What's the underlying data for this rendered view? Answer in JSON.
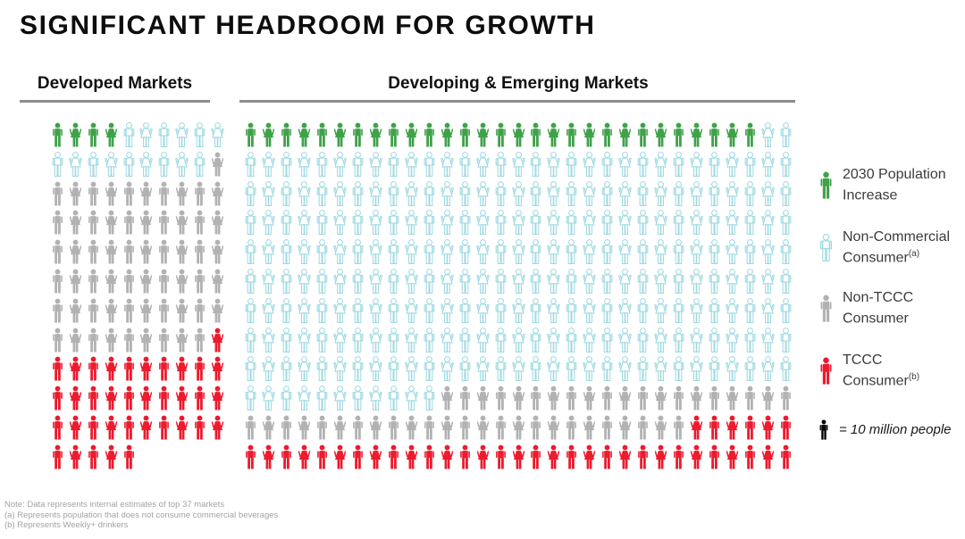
{
  "title": "SIGNIFICANT HEADROOM FOR GROWTH",
  "categories": {
    "increase": {
      "label": "2030 Population Increase",
      "color": "#3fa24a",
      "style": "solid"
    },
    "noncommercial": {
      "label": "Non-Commercial Consumer (a)",
      "color": "#9ed9e1",
      "style": "outline"
    },
    "nontccc": {
      "label": "Non-TCCC Consumer",
      "color": "#b2b2b4",
      "style": "solid"
    },
    "tccc": {
      "label": "TCCC Consumer (b)",
      "color": "#ec1b2e",
      "style": "solid"
    }
  },
  "panels": [
    {
      "label": "Developed Markets",
      "rows": [
        [
          [
            "increase",
            4
          ],
          [
            "noncommercial",
            6
          ]
        ],
        [
          [
            "noncommercial",
            9
          ],
          [
            "nontccc",
            1
          ]
        ],
        [
          [
            "nontccc",
            10
          ]
        ],
        [
          [
            "nontccc",
            10
          ]
        ],
        [
          [
            "nontccc",
            10
          ]
        ],
        [
          [
            "nontccc",
            10
          ]
        ],
        [
          [
            "nontccc",
            10
          ]
        ],
        [
          [
            "nontccc",
            9
          ],
          [
            "tccc",
            1
          ]
        ],
        [
          [
            "tccc",
            10
          ]
        ],
        [
          [
            "tccc",
            10
          ]
        ],
        [
          [
            "tccc",
            10
          ]
        ],
        [
          [
            "tccc",
            5
          ]
        ]
      ]
    },
    {
      "label": "Developing & Emerging Markets",
      "rows": [
        [
          [
            "increase",
            29
          ],
          [
            "noncommercial",
            2
          ]
        ],
        [
          [
            "noncommercial",
            31
          ]
        ],
        [
          [
            "noncommercial",
            31
          ]
        ],
        [
          [
            "noncommercial",
            31
          ]
        ],
        [
          [
            "noncommercial",
            31
          ]
        ],
        [
          [
            "noncommercial",
            31
          ]
        ],
        [
          [
            "noncommercial",
            31
          ]
        ],
        [
          [
            "noncommercial",
            31
          ]
        ],
        [
          [
            "noncommercial",
            31
          ]
        ],
        [
          [
            "noncommercial",
            11
          ],
          [
            "nontccc",
            20
          ]
        ],
        [
          [
            "nontccc",
            25
          ],
          [
            "tccc",
            6
          ]
        ],
        [
          [
            "tccc",
            31
          ]
        ]
      ]
    }
  ],
  "legend": {
    "items": [
      {
        "line1": "2030 Population",
        "line2": "Increase",
        "sup": "",
        "category": "increase"
      },
      {
        "line1": "Non-Commercial",
        "line2": "Consumer",
        "sup": "(a)",
        "category": "noncommercial"
      },
      {
        "line1": "Non-TCCC",
        "line2": "Consumer",
        "sup": "",
        "category": "nontccc"
      },
      {
        "line1": "TCCC",
        "line2": "Consumer",
        "sup": "(b)",
        "category": "tccc"
      }
    ],
    "unit": {
      "icon_color": "#000000",
      "label": "= 10 million people"
    }
  },
  "footnotes": [
    "Note: Data represents internal estimates of top 37 markets",
    "(a) Represents population that does not consume commercial beverages",
    "(b) Represents Weekly+ drinkers"
  ],
  "chart_data": {
    "type": "pictogram",
    "title": "SIGNIFICANT HEADROOM FOR GROWTH",
    "unit_per_icon": "1 icon = 10 million people",
    "legend_position": "right",
    "groups": [
      {
        "name": "Developed Markets",
        "icons_total": 115,
        "population_millions_total": 1150,
        "segments": [
          {
            "category": "2030 Population Increase",
            "icons": 4,
            "millions": 40
          },
          {
            "category": "Non-Commercial Consumer",
            "icons": 15,
            "millions": 150
          },
          {
            "category": "Non-TCCC Consumer",
            "icons": 60,
            "millions": 600
          },
          {
            "category": "TCCC Consumer",
            "icons": 36,
            "millions": 360
          }
        ]
      },
      {
        "name": "Developing & Emerging Markets",
        "icons_total": 372,
        "population_millions_total": 3720,
        "segments": [
          {
            "category": "2030 Population Increase",
            "icons": 29,
            "millions": 290
          },
          {
            "category": "Non-Commercial Consumer",
            "icons": 261,
            "millions": 2610
          },
          {
            "category": "Non-TCCC Consumer",
            "icons": 45,
            "millions": 450
          },
          {
            "category": "TCCC Consumer",
            "icons": 37,
            "millions": 370
          }
        ]
      }
    ]
  }
}
